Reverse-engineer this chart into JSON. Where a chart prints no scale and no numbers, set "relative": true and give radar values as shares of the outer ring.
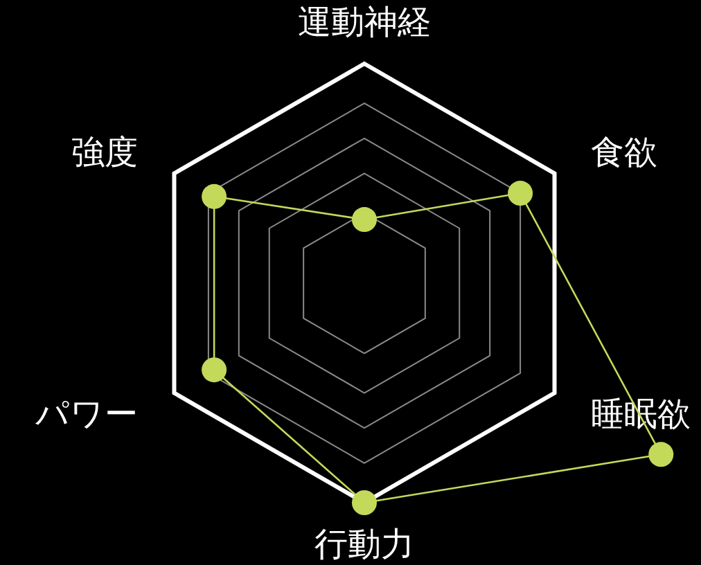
{
  "chart_data": {
    "type": "radar",
    "relative": true,
    "grid": true,
    "marker": "circle",
    "categories": [
      "運動神経",
      "食欲",
      "睡眠欲",
      "行動力",
      "パワー",
      "強度"
    ],
    "series": [
      {
        "color": "#c3d95a",
        "values": [
          0.29,
          0.82,
          1.56,
          1.0,
          0.79,
          0.79
        ]
      }
    ]
  }
}
